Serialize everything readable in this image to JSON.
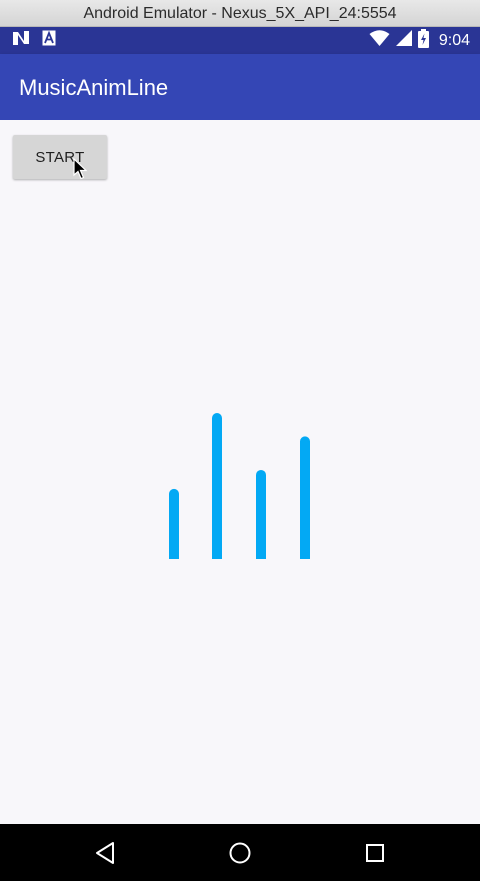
{
  "window": {
    "title": "Android Emulator - Nexus_5X_API_24:5554"
  },
  "status_bar": {
    "time": "9:04",
    "left_icons": [
      "n-notification-icon",
      "a-notification-icon"
    ],
    "right_icons": [
      "wifi-icon",
      "signal-icon",
      "battery-icon"
    ]
  },
  "app_bar": {
    "title": "MusicAnimLine"
  },
  "main": {
    "start_button_label": "START"
  },
  "visualizer": {
    "bar_color": "#03a9f4",
    "bar_levels": [
      0.48,
      1.0,
      0.61,
      0.84
    ]
  },
  "navigation": {
    "buttons": [
      "back-icon",
      "home-icon",
      "recents-icon"
    ]
  },
  "colors": {
    "status_bar": "#2a3595",
    "app_bar": "#3446b5",
    "background": "#f8f7fa",
    "button": "#d6d6d6"
  }
}
